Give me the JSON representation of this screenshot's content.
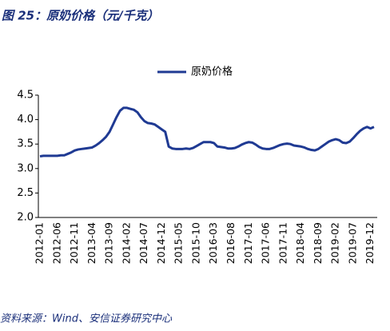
{
  "chart_data": {
    "type": "line",
    "title": "图 25：原奶价格（元/千克）",
    "source": "资料来源：Wind、安信证券研究中心",
    "categories": [
      "2012-01",
      null,
      null,
      null,
      null,
      "2012-06",
      null,
      null,
      null,
      null,
      "2012-11",
      null,
      null,
      null,
      null,
      "2013-04",
      null,
      null,
      null,
      null,
      "2013-09",
      null,
      null,
      null,
      null,
      "2014-02",
      null,
      null,
      null,
      null,
      "2014-07",
      null,
      null,
      null,
      null,
      "2014-12",
      null,
      null,
      null,
      null,
      "2015-05",
      null,
      null,
      null,
      null,
      "2015-10",
      null,
      null,
      null,
      null,
      "2016-03",
      null,
      null,
      null,
      null,
      "2016-08",
      null,
      null,
      null,
      null,
      "2017-01",
      null,
      null,
      null,
      null,
      "2017-06",
      null,
      null,
      null,
      null,
      "2017-11",
      null,
      null,
      null,
      null,
      "2018-04",
      null,
      null,
      null,
      null,
      "2018-09",
      null,
      null,
      null,
      null,
      "2019-02",
      null,
      null,
      null,
      null,
      "2019-07",
      null,
      null,
      null,
      null,
      "2019-12",
      null
    ],
    "series": [
      {
        "name": "原奶价格",
        "color": "#1f3a93",
        "values": [
          3.25,
          3.26,
          3.26,
          3.26,
          3.26,
          3.26,
          3.27,
          3.27,
          3.3,
          3.33,
          3.37,
          3.39,
          3.4,
          3.41,
          3.42,
          3.43,
          3.47,
          3.52,
          3.58,
          3.65,
          3.75,
          3.9,
          4.05,
          4.18,
          4.24,
          4.24,
          4.22,
          4.2,
          4.15,
          4.05,
          3.97,
          3.93,
          3.92,
          3.9,
          3.85,
          3.8,
          3.75,
          3.45,
          3.41,
          3.4,
          3.4,
          3.4,
          3.41,
          3.4,
          3.42,
          3.46,
          3.5,
          3.54,
          3.54,
          3.54,
          3.52,
          3.45,
          3.44,
          3.43,
          3.41,
          3.41,
          3.42,
          3.45,
          3.49,
          3.52,
          3.54,
          3.53,
          3.49,
          3.44,
          3.41,
          3.4,
          3.4,
          3.42,
          3.45,
          3.48,
          3.5,
          3.51,
          3.5,
          3.47,
          3.46,
          3.45,
          3.43,
          3.4,
          3.38,
          3.37,
          3.4,
          3.45,
          3.5,
          3.55,
          3.58,
          3.6,
          3.58,
          3.53,
          3.52,
          3.55,
          3.62,
          3.7,
          3.77,
          3.82,
          3.85,
          3.82,
          3.85
        ]
      }
    ],
    "ylim": [
      2.0,
      4.5
    ],
    "yticks": [
      {
        "value": 2.0,
        "label": "2.0"
      },
      2.5,
      {
        "value": 3.0,
        "label": "3.0"
      },
      3.5,
      {
        "value": 4.0,
        "label": "4.0"
      },
      4.5
    ],
    "grid": false
  }
}
